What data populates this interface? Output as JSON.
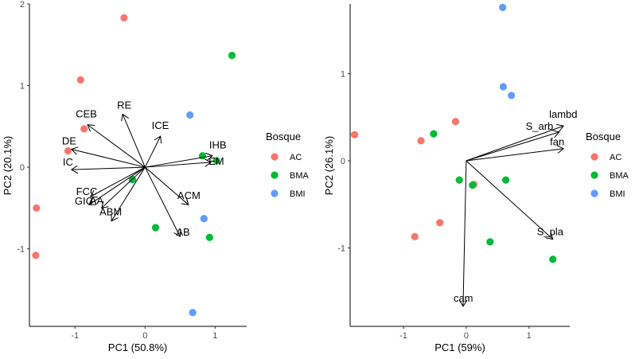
{
  "chart_data": [
    {
      "type": "scatter",
      "subtype": "pca-biplot",
      "xlabel": "PC1 (50.8%)",
      "ylabel": "PC2 (20.1%)",
      "xlim": [
        -1.65,
        1.45
      ],
      "ylim": [
        -1.95,
        2.0
      ],
      "x_ticks": [
        -1,
        0,
        1
      ],
      "y_ticks": [
        -1,
        0,
        1,
        2
      ],
      "grid": false,
      "legend": {
        "title": "Bosque",
        "position": "right",
        "entries": [
          {
            "name": "AC",
            "color": "#F8766D"
          },
          {
            "name": "BMA",
            "color": "#00BA38"
          },
          {
            "name": "BMI",
            "color": "#619CFF"
          }
        ]
      },
      "series": [
        {
          "name": "AC",
          "color": "#F8766D",
          "points": [
            [
              -0.3,
              1.83
            ],
            [
              -0.92,
              1.07
            ],
            [
              -0.87,
              0.47
            ],
            [
              -1.1,
              0.2
            ],
            [
              -1.55,
              -0.5
            ],
            [
              -1.56,
              -1.08
            ]
          ]
        },
        {
          "name": "BMA",
          "color": "#00BA38",
          "points": [
            [
              1.24,
              1.37
            ],
            [
              0.82,
              0.14
            ],
            [
              1.02,
              0.08
            ],
            [
              -0.18,
              -0.15
            ],
            [
              0.15,
              -0.74
            ],
            [
              0.92,
              -0.86
            ]
          ]
        },
        {
          "name": "BMI",
          "color": "#619CFF",
          "points": [
            [
              0.64,
              0.64
            ],
            [
              0.84,
              -0.63
            ],
            [
              0.68,
              -1.78
            ]
          ]
        }
      ],
      "arrows": [
        {
          "label": "RE",
          "x": -0.32,
          "y": 0.65
        },
        {
          "label": "ICE",
          "x": 0.22,
          "y": 0.38
        },
        {
          "label": "CEB",
          "x": -0.82,
          "y": 0.52
        },
        {
          "label": "DE",
          "x": -1.05,
          "y": 0.22
        },
        {
          "label": "IC",
          "x": -1.05,
          "y": -0.03
        },
        {
          "label": "IHB",
          "x": 0.96,
          "y": 0.14
        },
        {
          "label": "EM",
          "x": 0.94,
          "y": 0.06
        },
        {
          "label": "FCC",
          "x": -0.78,
          "y": -0.36
        },
        {
          "label": "GIC",
          "x": -0.8,
          "y": -0.46
        },
        {
          "label": "AA",
          "x": -0.62,
          "y": -0.5
        },
        {
          "label": "ABM",
          "x": -0.48,
          "y": -0.66
        },
        {
          "label": "ACM",
          "x": 0.62,
          "y": -0.46
        },
        {
          "label": "AB",
          "x": 0.5,
          "y": -0.85
        }
      ]
    },
    {
      "type": "scatter",
      "subtype": "pca-biplot",
      "xlabel": "PC1 (59%)",
      "ylabel": "PC2 (26.1%)",
      "xlim": [
        -1.85,
        1.65
      ],
      "ylim": [
        -1.9,
        1.8
      ],
      "x_ticks": [
        -1,
        0,
        1
      ],
      "y_ticks": [
        -1,
        0,
        1
      ],
      "grid": false,
      "legend": {
        "title": "Bosque",
        "position": "right",
        "entries": [
          {
            "name": "AC",
            "color": "#F8766D"
          },
          {
            "name": "BMA",
            "color": "#00BA38"
          },
          {
            "name": "BMI",
            "color": "#619CFF"
          }
        ]
      },
      "series": [
        {
          "name": "AC",
          "color": "#F8766D",
          "points": [
            [
              -1.78,
              0.3
            ],
            [
              -0.72,
              0.23
            ],
            [
              -0.17,
              0.45
            ],
            [
              0.12,
              -0.27
            ],
            [
              -0.42,
              -0.71
            ],
            [
              -0.82,
              -0.87
            ]
          ]
        },
        {
          "name": "BMA",
          "color": "#00BA38",
          "points": [
            [
              -0.52,
              0.31
            ],
            [
              -0.11,
              -0.22
            ],
            [
              0.1,
              -0.28
            ],
            [
              0.63,
              -0.22
            ],
            [
              0.38,
              -0.93
            ],
            [
              1.38,
              -1.13
            ]
          ]
        },
        {
          "name": "BMI",
          "color": "#619CFF",
          "points": [
            [
              0.58,
              1.76
            ],
            [
              0.59,
              0.85
            ],
            [
              0.72,
              0.75
            ]
          ]
        }
      ],
      "arrows": [
        {
          "label": "lambd",
          "x": 1.55,
          "y": 0.4
        },
        {
          "label": "S_arb",
          "x": 1.48,
          "y": 0.33
        },
        {
          "label": "fan",
          "x": 1.55,
          "y": 0.14
        },
        {
          "label": "S_pla",
          "x": 1.38,
          "y": -0.9
        },
        {
          "label": "cam",
          "x": -0.05,
          "y": -1.67
        }
      ]
    }
  ]
}
